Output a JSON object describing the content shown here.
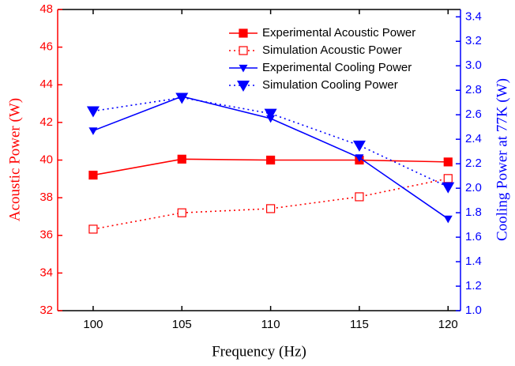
{
  "chart_data": {
    "type": "line",
    "xlabel": "Frequency (Hz)",
    "ylabel": "Acoustic Power (W)",
    "y2label": "Cooling Power at 77K (W)",
    "x": [
      100,
      105,
      110,
      115,
      120
    ],
    "xlim": [
      98,
      120.7
    ],
    "xticks": [
      100,
      105,
      110,
      115,
      120
    ],
    "ylim": [
      32,
      48
    ],
    "yticks": [
      32,
      34,
      36,
      38,
      40,
      42,
      44,
      46,
      48
    ],
    "y2lim": [
      1.0,
      3.46
    ],
    "y2ticks": [
      {
        "value": 1.0,
        "label": "1.0"
      },
      1.2,
      1.4,
      1.6,
      1.8,
      {
        "value": 2.0,
        "label": "2.0"
      },
      2.2,
      2.4,
      2.6,
      2.8,
      {
        "value": 3.0,
        "label": "3.0"
      },
      3.2,
      3.4
    ],
    "ycolor": "#ff0000",
    "y2color": "#0000ff",
    "legend": "upper right",
    "series": [
      {
        "name": "Experimental Acoustic Power",
        "color": "#ff0000",
        "linestyle": "solid",
        "marker": "square",
        "values": [
          39.2,
          40.05,
          40.0,
          40.0,
          39.9
        ]
      },
      {
        "name": "Simulation Acoustic Power",
        "color": "#ff0000",
        "linestyle": "dotted",
        "marker": "open-square",
        "values": [
          36.33,
          37.2,
          37.42,
          38.05,
          39.02
        ]
      },
      {
        "name": "Experimental Cooling Power",
        "color": "#0000ff",
        "linestyle": "solid",
        "marker": "small-triangle-down",
        "axis": "y2",
        "values": [
          2.47,
          2.75,
          2.57,
          2.25,
          1.75
        ]
      },
      {
        "name": "Simulation Cooling Power",
        "color": "#0000ff",
        "linestyle": "dotted",
        "marker": "triangle-down",
        "axis": "y2",
        "values": [
          2.63,
          2.74,
          2.61,
          2.35,
          2.01
        ]
      }
    ]
  }
}
